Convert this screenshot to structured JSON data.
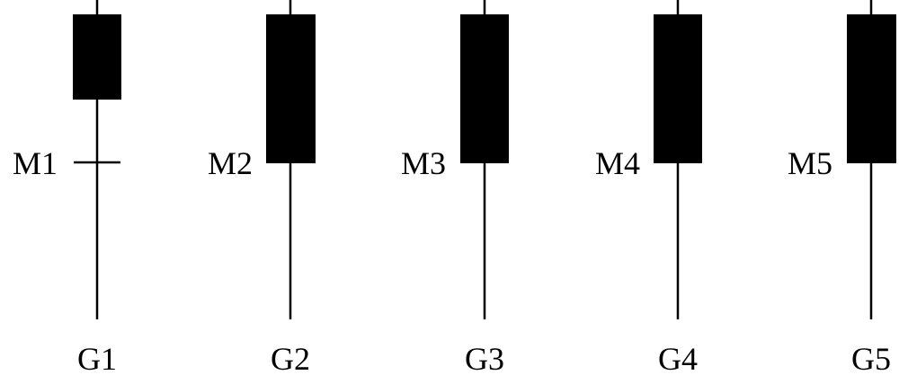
{
  "diagram": {
    "columns": [
      {
        "gate_label": "G1",
        "marker_label": "M1",
        "marker_style": "tick"
      },
      {
        "gate_label": "G2",
        "marker_label": "M2",
        "marker_style": "block-edge"
      },
      {
        "gate_label": "G3",
        "marker_label": "M3",
        "marker_style": "block-edge"
      },
      {
        "gate_label": "G4",
        "marker_label": "M4",
        "marker_style": "block-edge"
      },
      {
        "gate_label": "G5",
        "marker_label": "M5",
        "marker_style": "block-edge"
      }
    ],
    "colors": {
      "line": "#000000",
      "block": "#000000",
      "background": "#ffffff"
    }
  }
}
